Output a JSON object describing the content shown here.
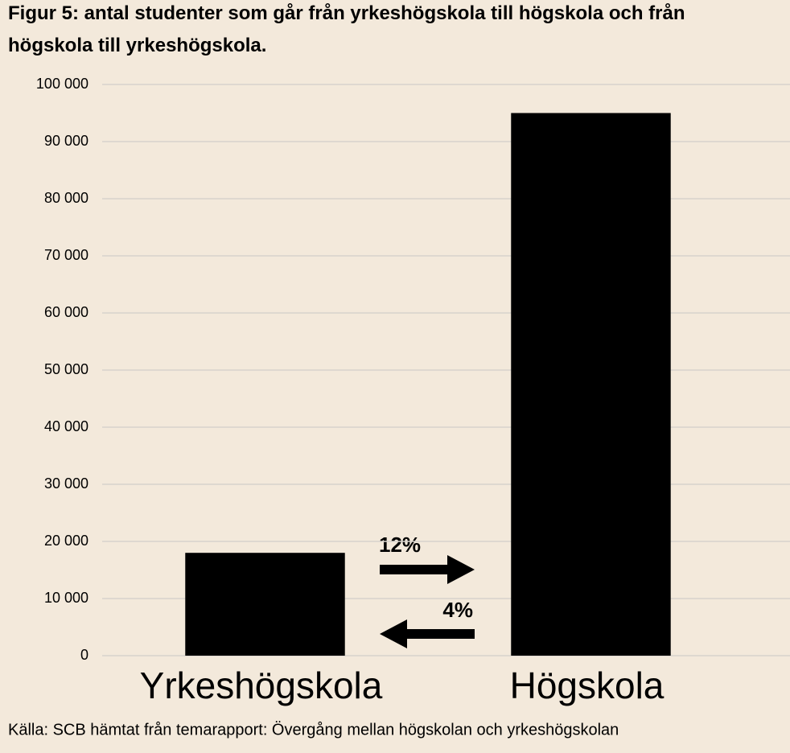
{
  "chart_data": {
    "type": "bar",
    "title": "Figur 5: antal studenter som går från yrkeshögskola till högskola och från högskola till yrkeshögskola.",
    "categories": [
      "Yrkeshögskola",
      "Högskola"
    ],
    "values": [
      18000,
      95000
    ],
    "color": "#000000",
    "ylim": [
      0,
      100000
    ],
    "yticks": [
      0,
      {
        "value": 10000,
        "label": "10 000"
      },
      {
        "value": 20000,
        "label": "20 000"
      },
      {
        "value": 30000,
        "label": "30 000"
      },
      {
        "value": 40000,
        "label": "40 000"
      },
      {
        "value": 50000,
        "label": "50 000"
      },
      {
        "value": 60000,
        "label": "60 000"
      },
      {
        "value": 70000,
        "label": "70 000"
      },
      {
        "value": 80000,
        "label": "80 000"
      },
      {
        "value": 90000,
        "label": "90 000"
      },
      {
        "value": 100000,
        "label": "100 000"
      }
    ],
    "grid": true,
    "annotations": [
      "12%",
      "4%"
    ],
    "source": "Källa: SCB hämtat från temarapport: Övergång mellan högskolan och yrkeshögskolan"
  }
}
